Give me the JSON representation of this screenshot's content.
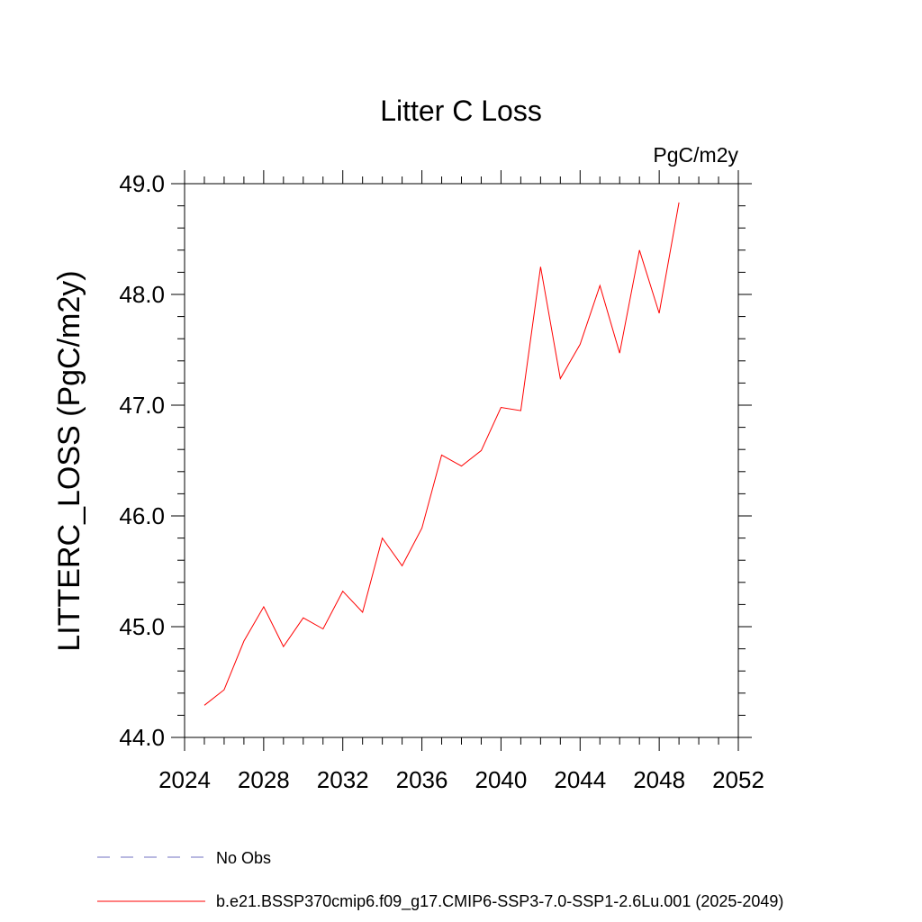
{
  "chart_data": {
    "type": "line",
    "title": "Litter C Loss",
    "units": "PgC/m2y",
    "xlabel": "",
    "ylabel": "LITTERC_LOSS  (PgC/m2y)",
    "xlim": [
      2024,
      2052
    ],
    "ylim": [
      44.0,
      49.0
    ],
    "xticks": [
      2024,
      2028,
      2032,
      2036,
      2040,
      2044,
      2048,
      2052
    ],
    "yticks": [
      "44.0",
      "45.0",
      "46.0",
      "47.0",
      "48.0",
      "49.0"
    ],
    "grid": false,
    "legend_position": "bottom",
    "series": [
      {
        "name": "b.e21.BSSP370cmip6.f09_g17.CMIP6-SSP3-7.0-SSP1-2.6Lu.001 (2025-2049)",
        "color": "#ff0000",
        "style": "solid",
        "x": [
          2025,
          2026,
          2027,
          2028,
          2029,
          2030,
          2031,
          2032,
          2033,
          2034,
          2035,
          2036,
          2037,
          2038,
          2039,
          2040,
          2041,
          2042,
          2043,
          2044,
          2045,
          2046,
          2047,
          2048,
          2049
        ],
        "y": [
          44.29,
          44.43,
          44.87,
          45.18,
          44.82,
          45.08,
          44.98,
          45.32,
          45.13,
          45.8,
          45.55,
          45.89,
          46.55,
          46.45,
          46.59,
          46.98,
          46.95,
          48.25,
          47.24,
          47.55,
          48.08,
          47.47,
          48.4,
          47.83,
          48.83
        ]
      }
    ],
    "legend": [
      {
        "label": "No Obs",
        "color": "#7070c0",
        "style": "dashed"
      },
      {
        "label": "b.e21.BSSP370cmip6.f09_g17.CMIP6-SSP3-7.0-SSP1-2.6Lu.001 (2025-2049)",
        "color": "#ff0000",
        "style": "solid"
      }
    ]
  }
}
